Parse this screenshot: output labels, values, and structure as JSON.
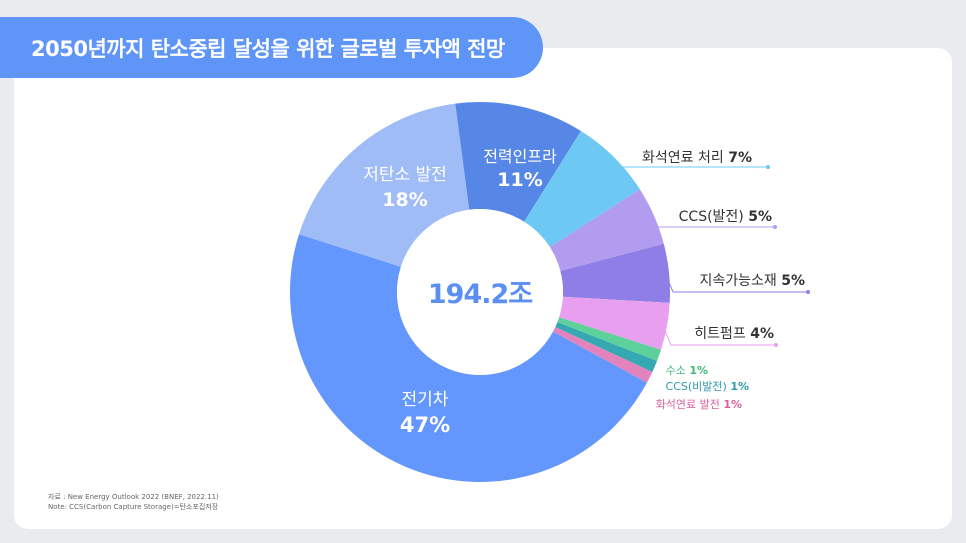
{
  "title": "2050년까지 탄소중립 달성을 위한 글로벌 투자액 전망",
  "source_lines": [
    "자료 : New Energy Outlook 2022 (BNEF, 2022.11)",
    "Note: CCS(Carbon Capture Storage)=탄소포집저장"
  ],
  "chart_data": {
    "type": "pie",
    "variant": "donut",
    "title": "2050년까지 탄소중립 달성을 위한 글로벌 투자액 전망",
    "center_label": "194.2조",
    "slices": [
      {
        "label": "전력인프라",
        "value": 11,
        "value_label": "11%",
        "color": "#5687e6",
        "label_position": "inside"
      },
      {
        "label": "화석연료 처리",
        "value": 7,
        "value_label": "7%",
        "color": "#6ec8f4",
        "label_position": "outside"
      },
      {
        "label": "CCS(발전)",
        "value": 5,
        "value_label": "5%",
        "color": "#b19cf0",
        "label_position": "outside"
      },
      {
        "label": "지속가능소재",
        "value": 5,
        "value_label": "5%",
        "color": "#8f7ee5",
        "label_position": "outside"
      },
      {
        "label": "히트펌프",
        "value": 4,
        "value_label": "4%",
        "color": "#e99ff0",
        "label_position": "outside"
      },
      {
        "label": "수소",
        "value": 1,
        "value_label": "1%",
        "color": "#5ed19a",
        "label_position": "outside"
      },
      {
        "label": "CCS(비발전)",
        "value": 1,
        "value_label": "1%",
        "color": "#35a9b2",
        "label_position": "outside"
      },
      {
        "label": "화석연료 발전",
        "value": 1,
        "value_label": "1%",
        "color": "#e283bd",
        "label_position": "outside"
      },
      {
        "label": "전기차",
        "value": 47,
        "value_label": "47%",
        "color": "#6397fd",
        "label_position": "inside"
      },
      {
        "label": "저탄소 발전",
        "value": 18,
        "value_label": "18%",
        "color": "#9fbcf6",
        "label_position": "inside"
      }
    ]
  }
}
